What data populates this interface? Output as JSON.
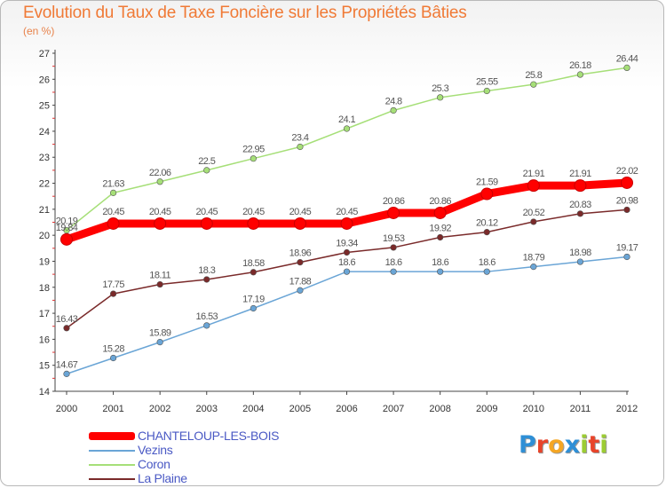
{
  "header": {
    "title": "Evolution du Taux de Taxe Foncière sur les Propriétés Bâties",
    "subtitle": "(en %)"
  },
  "brand": {
    "letters": [
      "P",
      "r",
      "o",
      "x",
      "i",
      "t",
      "i"
    ],
    "colors": [
      "#2e8fd6",
      "#e8442a",
      "#f5a623",
      "#2e8fd6",
      "#9ccc33",
      "#e8442a",
      "#9ccc33"
    ]
  },
  "chart_data": {
    "type": "line",
    "title": "Evolution du Taux de Taxe Foncière sur les Propriétés Bâties",
    "ylabel": "(en %)",
    "xlabel": "",
    "x": [
      2000,
      2001,
      2002,
      2003,
      2004,
      2005,
      2006,
      2007,
      2008,
      2009,
      2010,
      2011,
      2012
    ],
    "ylim": [
      14,
      27
    ],
    "yticks": [
      14,
      15,
      16,
      17,
      18,
      19,
      20,
      21,
      22,
      23,
      24,
      25,
      26,
      27
    ],
    "grid": false,
    "legend": "bottom-left",
    "series": [
      {
        "name": "CHANTELOUP-LES-BOIS",
        "color": "#ff0000",
        "thick": true,
        "values": [
          19.84,
          20.45,
          20.45,
          20.45,
          20.45,
          20.45,
          20.45,
          20.86,
          20.86,
          21.59,
          21.91,
          21.91,
          22.02
        ],
        "labels": [
          "19.84",
          "20.45",
          "20.45",
          "20.45",
          "20.45",
          "20.45",
          "20.45",
          "20.86",
          "20.86",
          "21.59",
          "21.91",
          "21.91",
          "22.02"
        ]
      },
      {
        "name": "Vezins",
        "color": "#6aa5d6",
        "thick": false,
        "values": [
          14.67,
          15.28,
          15.89,
          16.53,
          17.19,
          17.88,
          18.6,
          18.6,
          18.6,
          18.6,
          18.79,
          18.98,
          19.17
        ],
        "labels": [
          "14.67",
          "15.28",
          "15.89",
          "16.53",
          "17.19",
          "17.88",
          "18.6",
          "18.6",
          "18.6",
          "18.6",
          "18.79",
          "18.98",
          "19.17"
        ]
      },
      {
        "name": "Coron",
        "color": "#a6df78",
        "thick": false,
        "values": [
          20.19,
          21.63,
          22.06,
          22.5,
          22.95,
          23.4,
          24.1,
          24.8,
          25.3,
          25.55,
          25.8,
          26.18,
          26.44
        ],
        "labels": [
          "20.19",
          "21.63",
          "22.06",
          "22.5",
          "22.95",
          "23.4",
          "24.1",
          "24.8",
          "25.3",
          "25.55",
          "25.8",
          "26.18",
          "26.44"
        ]
      },
      {
        "name": "La Plaine",
        "color": "#7a2a2a",
        "thick": false,
        "values": [
          16.43,
          17.75,
          18.11,
          18.3,
          18.58,
          18.96,
          19.34,
          19.53,
          19.92,
          20.12,
          20.52,
          20.83,
          20.98
        ],
        "labels": [
          "16.43",
          "17.75",
          "18.11",
          "18.3",
          "18.58",
          "18.96",
          "19.34",
          "19.53",
          "19.92",
          "20.12",
          "20.52",
          "20.83",
          "20.98"
        ]
      }
    ]
  }
}
